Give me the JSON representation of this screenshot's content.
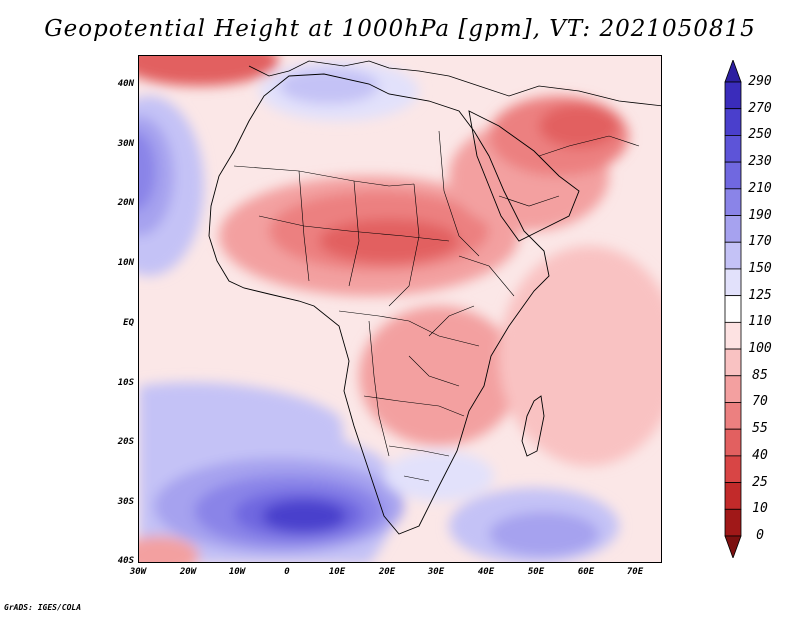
{
  "title": "Geopotential Height at 1000hPa [gpm], VT: 2021050815",
  "footer": "GrADS: IGES/COLA",
  "lat_labels": [
    "40N",
    "30N",
    "20N",
    "10N",
    "EQ",
    "10S",
    "20S",
    "30S",
    "40S"
  ],
  "lon_labels": [
    "30W",
    "20W",
    "10W",
    "0",
    "10E",
    "20E",
    "30E",
    "40E",
    "50E",
    "60E",
    "70E"
  ],
  "colorbar": {
    "labels": [
      "290",
      "270",
      "250",
      "230",
      "210",
      "190",
      "170",
      "150",
      "125",
      "110",
      "100",
      "85",
      "70",
      "55",
      "40",
      "25",
      "10",
      "0"
    ],
    "colors": [
      "#2d1fa0",
      "#3a2cbb",
      "#4a3fcc",
      "#5d54d8",
      "#7068e0",
      "#8a84e8",
      "#a6a2ef",
      "#c4c2f6",
      "#e2e1fb",
      "#ffffff",
      "#fde2e2",
      "#f9c2c2",
      "#f3a0a0",
      "#ec8080",
      "#e26060",
      "#d84545",
      "#c22a2a",
      "#a01818",
      "#7c1010"
    ]
  },
  "colors": {
    "ocean_neutral": "#fbe7e7",
    "border": "#000000"
  }
}
